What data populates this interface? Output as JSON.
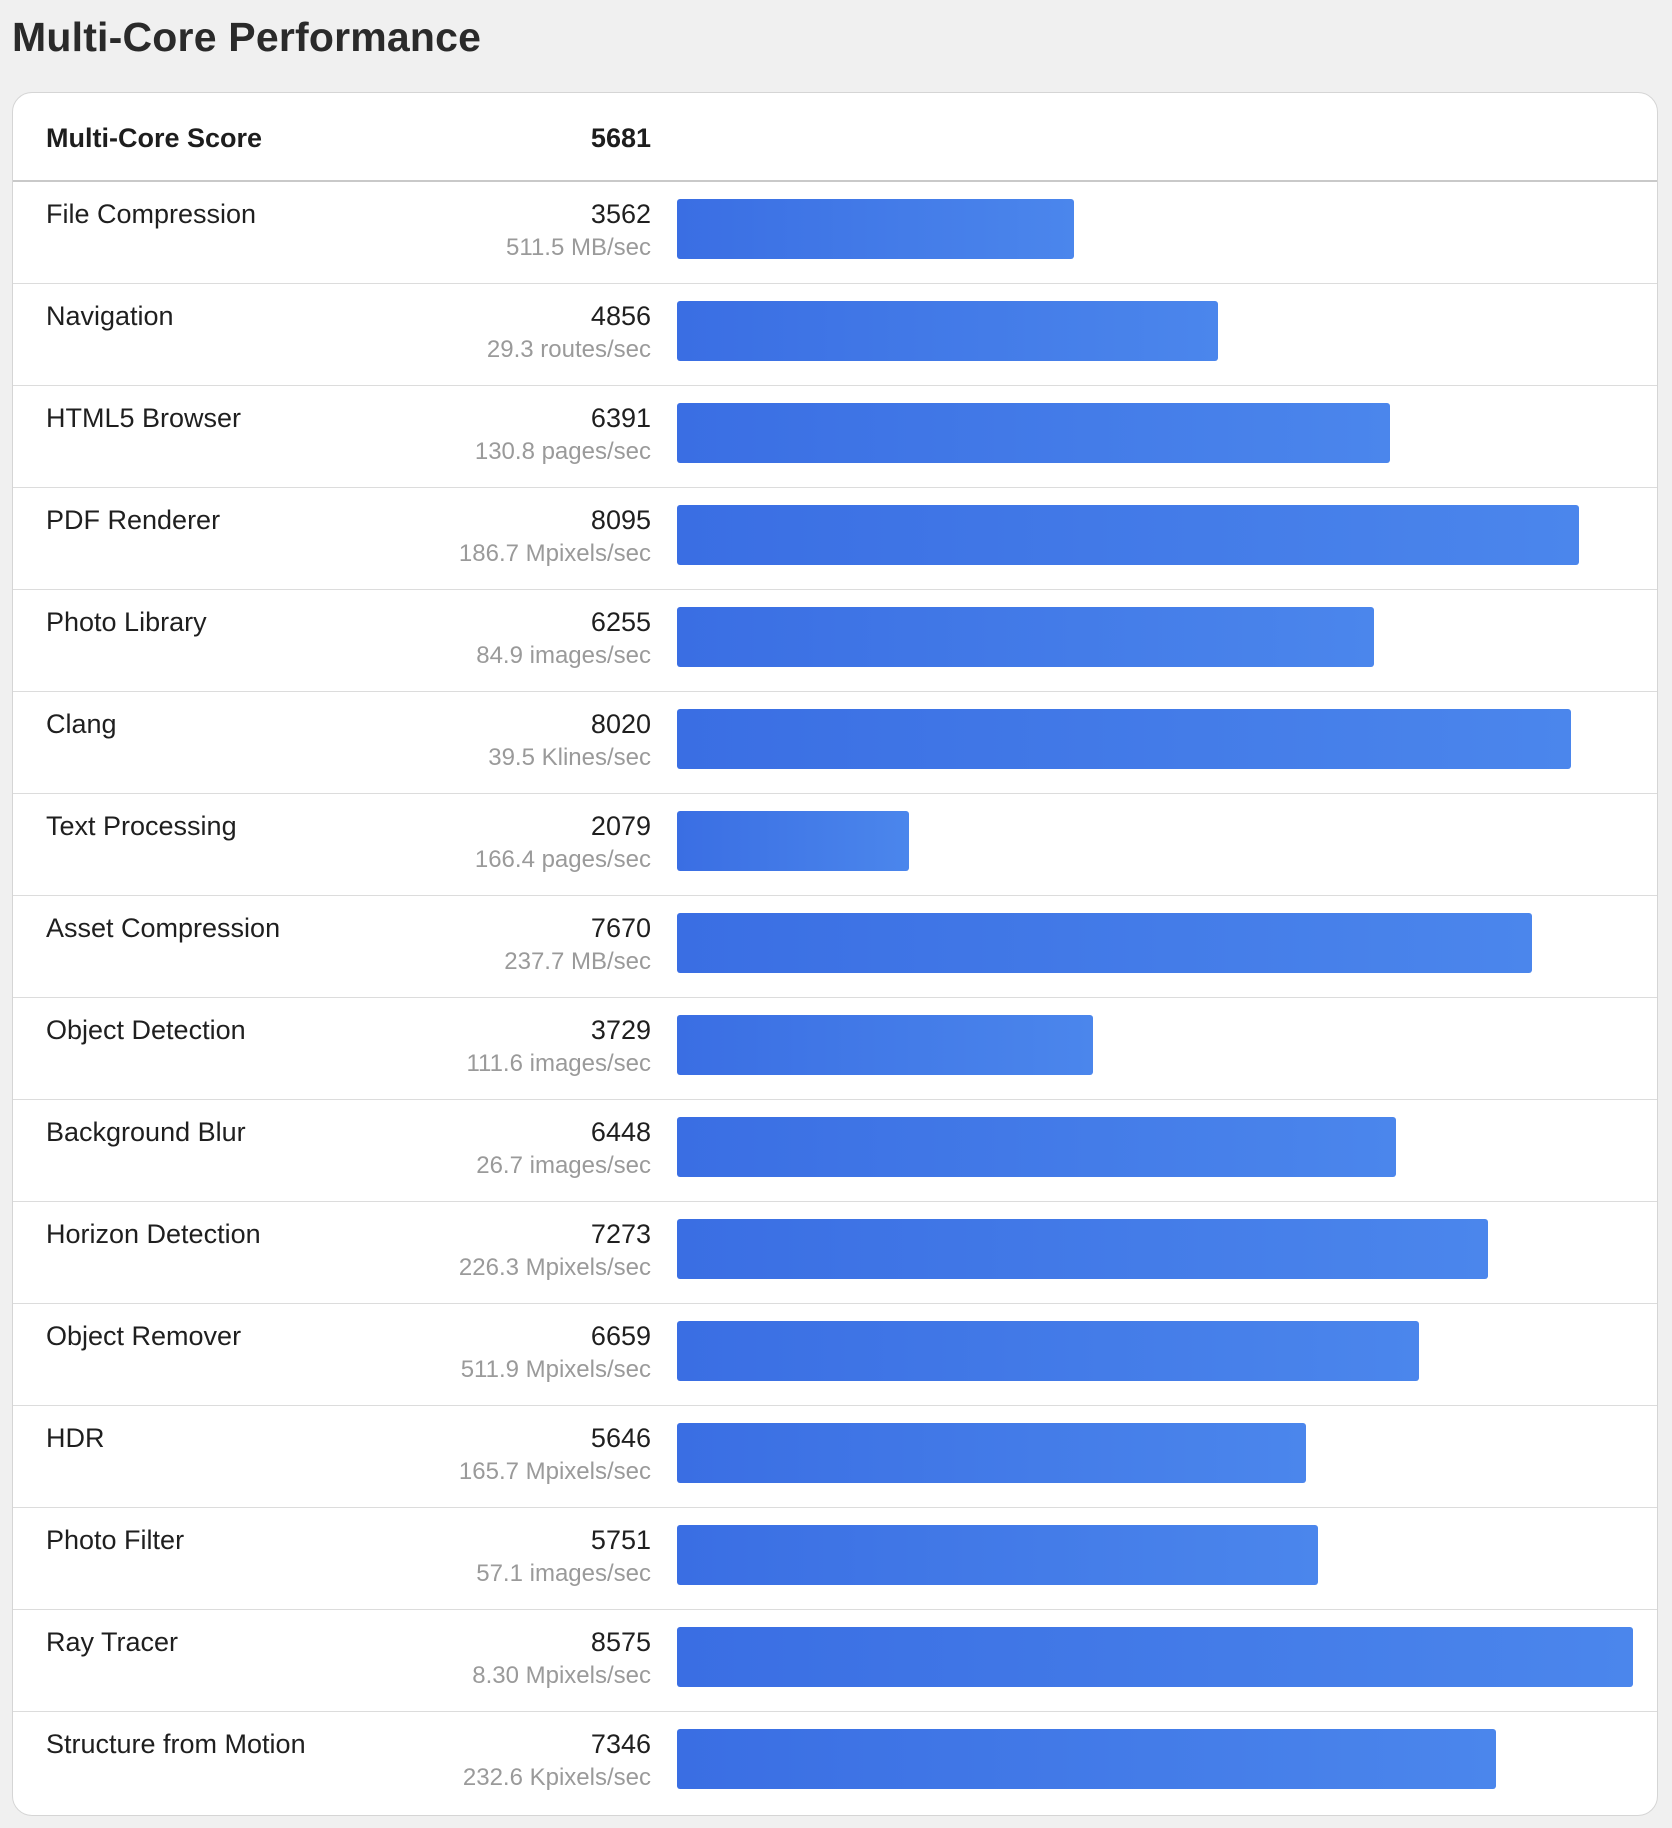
{
  "page": {
    "title": "Multi-Core Performance"
  },
  "score": {
    "label": "Multi-Core Score",
    "value": "5681"
  },
  "colors": {
    "bar_start": "#3a6ee3",
    "bar_end": "#4b86ec"
  },
  "chart_data": {
    "type": "bar",
    "orientation": "horizontal",
    "title": "Multi-Core Performance",
    "xmax": 8575,
    "categories": [
      "File Compression",
      "Navigation",
      "HTML5 Browser",
      "PDF Renderer",
      "Photo Library",
      "Clang",
      "Text Processing",
      "Asset Compression",
      "Object Detection",
      "Background Blur",
      "Horizon Detection",
      "Object Remover",
      "HDR",
      "Photo Filter",
      "Ray Tracer",
      "Structure from Motion"
    ],
    "values": [
      3562,
      4856,
      6391,
      8095,
      6255,
      8020,
      2079,
      7670,
      3729,
      6448,
      7273,
      6659,
      5646,
      5751,
      8575,
      7346
    ],
    "rates": [
      "511.5 MB/sec",
      "29.3 routes/sec",
      "130.8 pages/sec",
      "186.7 Mpixels/sec",
      "84.9 images/sec",
      "39.5 Klines/sec",
      "166.4 pages/sec",
      "237.7 MB/sec",
      "111.6 images/sec",
      "26.7 images/sec",
      "226.3 Mpixels/sec",
      "511.9 Mpixels/sec",
      "165.7 Mpixels/sec",
      "57.1 images/sec",
      "8.30 Mpixels/sec",
      "232.6 Kpixels/sec"
    ]
  }
}
